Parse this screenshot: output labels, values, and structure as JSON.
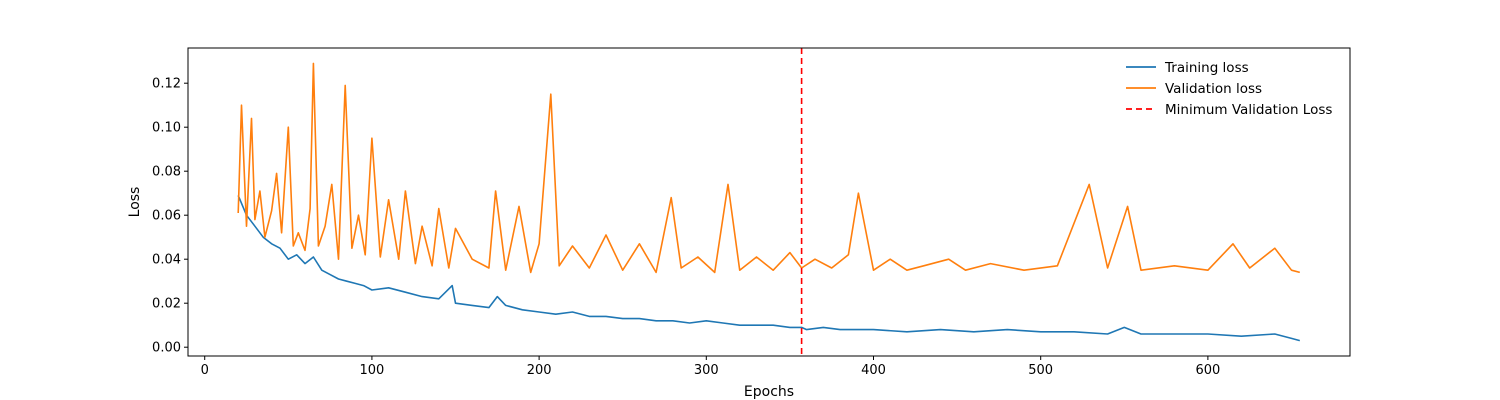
{
  "chart_data": {
    "type": "line",
    "title": "",
    "xlabel": "Epochs",
    "ylabel": "Loss",
    "xlim": [
      -10,
      685
    ],
    "ylim": [
      -0.004,
      0.136
    ],
    "xticks": [
      0,
      100,
      200,
      300,
      400,
      500,
      600
    ],
    "xtick_labels": [
      "0",
      "100",
      "200",
      "300",
      "400",
      "500",
      "600"
    ],
    "yticks": [
      0.0,
      0.02,
      0.04,
      0.06,
      0.08,
      0.1,
      0.12
    ],
    "ytick_labels": [
      "0.00",
      "0.02",
      "0.04",
      "0.06",
      "0.08",
      "0.10",
      "0.12"
    ],
    "grid": false,
    "legend_position": "top-right",
    "series": [
      {
        "name": "Training loss",
        "color": "#1f77b4",
        "x": [
          20,
          25,
          30,
          35,
          40,
          45,
          50,
          55,
          60,
          65,
          70,
          75,
          80,
          85,
          90,
          95,
          100,
          110,
          120,
          130,
          140,
          148,
          150,
          160,
          170,
          175,
          180,
          190,
          200,
          210,
          220,
          230,
          240,
          250,
          260,
          270,
          280,
          290,
          300,
          310,
          320,
          330,
          340,
          350,
          357,
          360,
          370,
          380,
          390,
          400,
          420,
          440,
          460,
          480,
          500,
          520,
          540,
          550,
          560,
          580,
          600,
          620,
          640,
          650,
          655
        ],
        "y": [
          0.069,
          0.06,
          0.055,
          0.05,
          0.047,
          0.045,
          0.04,
          0.042,
          0.038,
          0.041,
          0.035,
          0.033,
          0.031,
          0.03,
          0.029,
          0.028,
          0.026,
          0.027,
          0.025,
          0.023,
          0.022,
          0.028,
          0.02,
          0.019,
          0.018,
          0.023,
          0.019,
          0.017,
          0.016,
          0.015,
          0.016,
          0.014,
          0.014,
          0.013,
          0.013,
          0.012,
          0.012,
          0.011,
          0.012,
          0.011,
          0.01,
          0.01,
          0.01,
          0.009,
          0.009,
          0.008,
          0.009,
          0.008,
          0.008,
          0.008,
          0.007,
          0.008,
          0.007,
          0.008,
          0.007,
          0.007,
          0.006,
          0.009,
          0.006,
          0.006,
          0.006,
          0.005,
          0.006,
          0.004,
          0.003
        ]
      },
      {
        "name": "Validation loss",
        "color": "#ff7f0e",
        "x": [
          20,
          22,
          25,
          28,
          30,
          33,
          36,
          40,
          43,
          46,
          50,
          53,
          56,
          60,
          63,
          65,
          68,
          72,
          76,
          80,
          84,
          88,
          92,
          96,
          100,
          105,
          110,
          116,
          120,
          126,
          130,
          136,
          140,
          146,
          150,
          160,
          170,
          174,
          180,
          188,
          195,
          200,
          207,
          212,
          220,
          230,
          240,
          250,
          260,
          270,
          279,
          285,
          295,
          305,
          313,
          320,
          330,
          340,
          350,
          357,
          365,
          375,
          385,
          391,
          400,
          410,
          420,
          430,
          445,
          455,
          470,
          490,
          510,
          529,
          540,
          552,
          560,
          580,
          600,
          615,
          625,
          640,
          650,
          655
        ],
        "y": [
          0.061,
          0.11,
          0.055,
          0.104,
          0.058,
          0.071,
          0.05,
          0.062,
          0.079,
          0.052,
          0.1,
          0.046,
          0.052,
          0.044,
          0.063,
          0.129,
          0.046,
          0.055,
          0.074,
          0.04,
          0.119,
          0.045,
          0.06,
          0.042,
          0.095,
          0.041,
          0.067,
          0.04,
          0.071,
          0.038,
          0.055,
          0.037,
          0.063,
          0.036,
          0.054,
          0.04,
          0.036,
          0.071,
          0.035,
          0.064,
          0.034,
          0.047,
          0.115,
          0.037,
          0.046,
          0.036,
          0.051,
          0.035,
          0.047,
          0.034,
          0.068,
          0.036,
          0.041,
          0.034,
          0.074,
          0.035,
          0.041,
          0.035,
          0.043,
          0.036,
          0.04,
          0.036,
          0.042,
          0.07,
          0.035,
          0.04,
          0.035,
          0.037,
          0.04,
          0.035,
          0.038,
          0.035,
          0.037,
          0.074,
          0.036,
          0.064,
          0.035,
          0.037,
          0.035,
          0.047,
          0.036,
          0.045,
          0.035,
          0.034
        ]
      }
    ],
    "reference_lines": [
      {
        "name": "Minimum Validation Loss",
        "orientation": "vertical",
        "x": 357,
        "color": "#ff0000",
        "style": "dashed"
      }
    ]
  }
}
